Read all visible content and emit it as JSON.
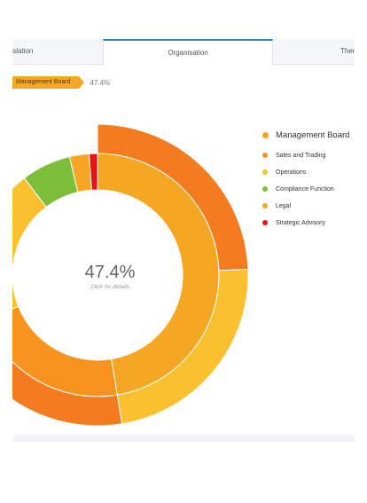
{
  "tabs": [
    {
      "label": "gislation"
    },
    {
      "label": "Organisation"
    },
    {
      "label": "Them"
    }
  ],
  "breadcrumb": {
    "label": "Management Board",
    "value": "47.4%"
  },
  "center": {
    "value": "47.4%",
    "hint": "Click for details"
  },
  "legend": {
    "title": "Management Board",
    "title_color": "#f5a623",
    "items": [
      {
        "label": "Sales and Trading",
        "color": "#f7931e"
      },
      {
        "label": "Operations",
        "color": "#fbc02d"
      },
      {
        "label": "Compliance Function",
        "color": "#7cbd3a"
      },
      {
        "label": "Legal",
        "color": "#f5a623"
      },
      {
        "label": "Strategic Advisory",
        "color": "#e8121a"
      }
    ]
  },
  "chart_data": {
    "type": "pie",
    "title": "",
    "inner_ring": [
      {
        "name": "Management Board",
        "value": 47.4,
        "color": "#f5a623"
      },
      {
        "name": "Sales and Trading",
        "value": 21.6,
        "color": "#f7931e"
      },
      {
        "name": "Operations",
        "value": 20.7,
        "color": "#fbc02d"
      },
      {
        "name": "Compliance Function",
        "value": 6.6,
        "color": "#7cbd3a"
      },
      {
        "name": "Legal",
        "value": 2.6,
        "color": "#f5a623"
      },
      {
        "name": "Strategic Advisory",
        "value": 1.1,
        "color": "#e8121a"
      }
    ],
    "outer_ring": [
      {
        "name": "Management Board",
        "value": 47.4,
        "segments": [
          {
            "value": 24.4,
            "color": "#f47c20"
          },
          {
            "value": 23.0,
            "color": "#fbc02d"
          }
        ]
      },
      {
        "name": "Sales and Trading",
        "value": 21.6,
        "color": "#f47c20"
      }
    ]
  }
}
